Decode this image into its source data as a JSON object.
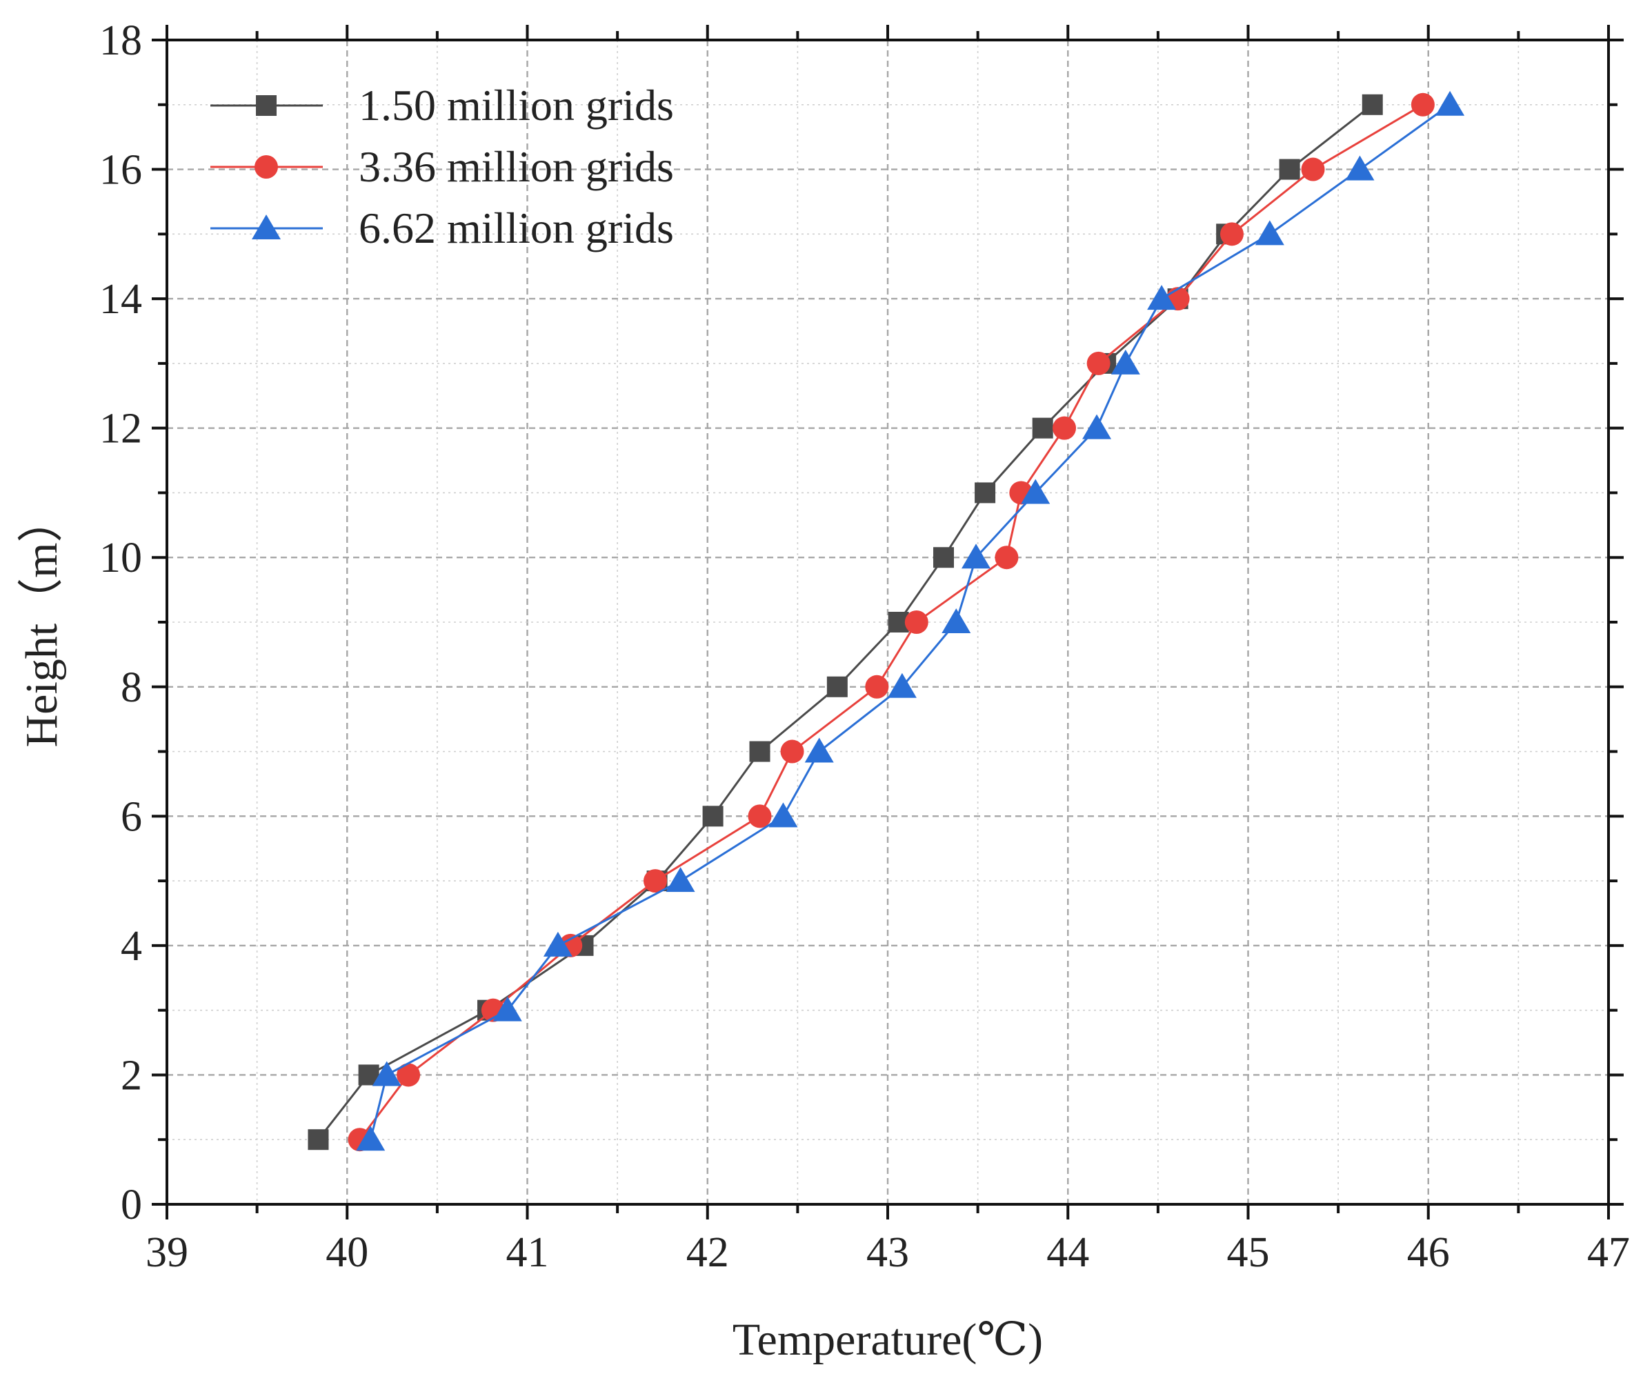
{
  "chart_data": {
    "type": "line",
    "title": "",
    "xlabel": "Temperature(℃)",
    "ylabel": "Height（m）",
    "xlim": [
      39,
      47
    ],
    "ylim": [
      0,
      18
    ],
    "xticks": [
      "39",
      "40",
      "41",
      "42",
      "43",
      "44",
      "45",
      "46",
      "47"
    ],
    "yticks": [
      "0",
      "2",
      "4",
      "6",
      "8",
      "10",
      "12",
      "14",
      "16",
      "18"
    ],
    "grid": true,
    "legend_position": "top-left",
    "series": [
      {
        "name": "1.50 million grids",
        "marker": "square",
        "color": "#4a4a4a",
        "points": [
          [
            39.84,
            1
          ],
          [
            40.12,
            2
          ],
          [
            40.78,
            3
          ],
          [
            41.31,
            4
          ],
          [
            41.72,
            5
          ],
          [
            42.03,
            6
          ],
          [
            42.29,
            7
          ],
          [
            42.72,
            8
          ],
          [
            43.06,
            9
          ],
          [
            43.31,
            10
          ],
          [
            43.54,
            11
          ],
          [
            43.86,
            12
          ],
          [
            44.21,
            13
          ],
          [
            44.61,
            14
          ],
          [
            44.88,
            15
          ],
          [
            45.23,
            16
          ],
          [
            45.69,
            17
          ]
        ]
      },
      {
        "name": "3.36 million grids",
        "marker": "circle",
        "color": "#e8413c",
        "points": [
          [
            40.07,
            1
          ],
          [
            40.34,
            2
          ],
          [
            40.81,
            3
          ],
          [
            41.24,
            4
          ],
          [
            41.71,
            5
          ],
          [
            42.29,
            6
          ],
          [
            42.47,
            7
          ],
          [
            42.94,
            8
          ],
          [
            43.16,
            9
          ],
          [
            43.66,
            10
          ],
          [
            43.74,
            11
          ],
          [
            43.98,
            12
          ],
          [
            44.17,
            13
          ],
          [
            44.61,
            14
          ],
          [
            44.91,
            15
          ],
          [
            45.36,
            16
          ],
          [
            45.97,
            17
          ]
        ]
      },
      {
        "name": "6.62 million grids",
        "marker": "triangle",
        "color": "#2a6fd6",
        "points": [
          [
            40.13,
            1
          ],
          [
            40.22,
            2
          ],
          [
            40.89,
            3
          ],
          [
            41.17,
            4
          ],
          [
            41.85,
            5
          ],
          [
            42.42,
            6
          ],
          [
            42.62,
            7
          ],
          [
            43.08,
            8
          ],
          [
            43.38,
            9
          ],
          [
            43.49,
            10
          ],
          [
            43.82,
            11
          ],
          [
            44.16,
            12
          ],
          [
            44.32,
            13
          ],
          [
            44.52,
            14
          ],
          [
            45.12,
            15
          ],
          [
            45.62,
            16
          ],
          [
            46.12,
            17
          ]
        ]
      }
    ]
  }
}
